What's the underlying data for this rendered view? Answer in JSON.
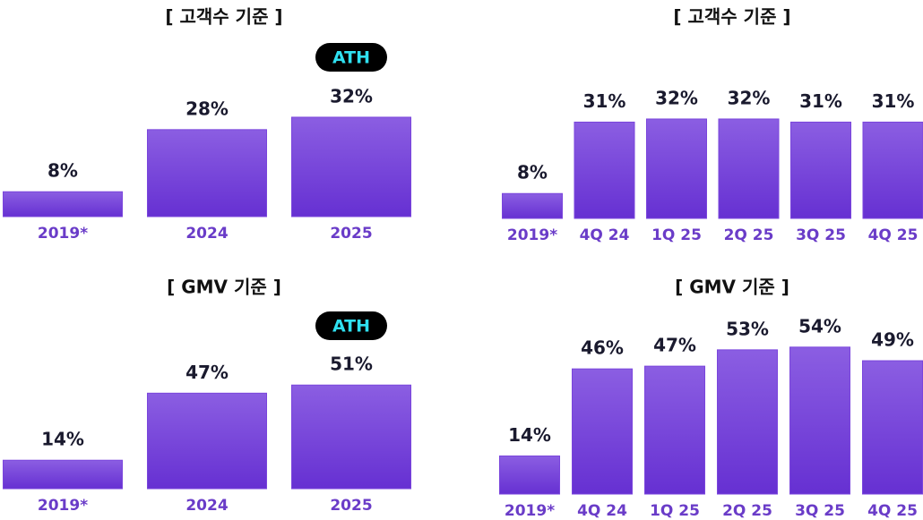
{
  "chart_data": [
    {
      "type": "bar",
      "title": "[ 고객수 기준 ]",
      "categories": [
        "2019*",
        "2024",
        "2025"
      ],
      "values": [
        8,
        28,
        32
      ],
      "value_labels": [
        "8%",
        "28%",
        "32%"
      ],
      "annotation": "ATH",
      "color": "#7a45dc"
    },
    {
      "type": "bar",
      "title": "[ 고객수 기준 ]",
      "categories": [
        "2019*",
        "4Q 24",
        "1Q 25",
        "2Q 25",
        "3Q 25",
        "4Q 25"
      ],
      "values": [
        8,
        31,
        32,
        32,
        31,
        31
      ],
      "value_labels": [
        "8%",
        "31%",
        "32%",
        "32%",
        "31%",
        "31%"
      ],
      "color": "#7a45dc"
    },
    {
      "type": "bar",
      "title": "[ GMV 기준 ]",
      "categories": [
        "2019*",
        "2024",
        "2025"
      ],
      "values": [
        14,
        47,
        51
      ],
      "value_labels": [
        "14%",
        "47%",
        "51%"
      ],
      "annotation": "ATH",
      "color": "#7a45dc"
    },
    {
      "type": "bar",
      "title": "[ GMV 기준 ]",
      "categories": [
        "2019*",
        "4Q 24",
        "1Q 25",
        "2Q 25",
        "3Q 25",
        "4Q 25"
      ],
      "values": [
        14,
        46,
        47,
        53,
        54,
        49
      ],
      "value_labels": [
        "14%",
        "46%",
        "47%",
        "53%",
        "54%",
        "49%"
      ],
      "color": "#7a45dc"
    }
  ]
}
